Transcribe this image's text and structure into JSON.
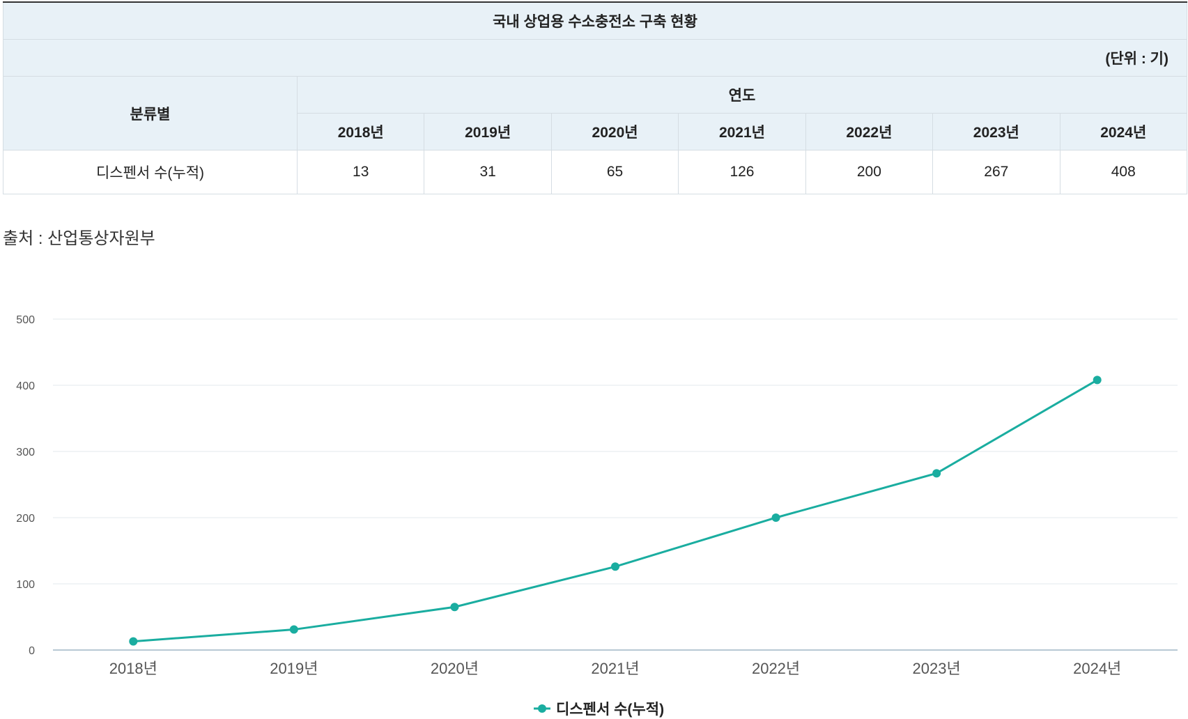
{
  "table": {
    "title": "국내 상업용 수소충전소 구축 현황",
    "unit": "(단위 : 기)",
    "category_header": "분류별",
    "year_header": "연도",
    "columns": [
      "2018년",
      "2019년",
      "2020년",
      "2021년",
      "2022년",
      "2023년",
      "2024년"
    ],
    "row_label": "디스펜서 수(누적)",
    "row_values": [
      "13",
      "31",
      "65",
      "126",
      "200",
      "267",
      "408"
    ]
  },
  "source": "출처 : 산업통상자원부",
  "chart_data": {
    "type": "line",
    "categories": [
      "2018년",
      "2019년",
      "2020년",
      "2021년",
      "2022년",
      "2023년",
      "2024년"
    ],
    "series": [
      {
        "name": "디스펜서 수(누적)",
        "values": [
          13,
          31,
          65,
          126,
          200,
          267,
          408
        ],
        "color": "#1aada0"
      }
    ],
    "yticks": [
      "500",
      "400",
      "300",
      "200",
      "100",
      "0"
    ],
    "ylim": [
      0,
      500
    ],
    "grid": true,
    "legend": "bottom-center"
  }
}
